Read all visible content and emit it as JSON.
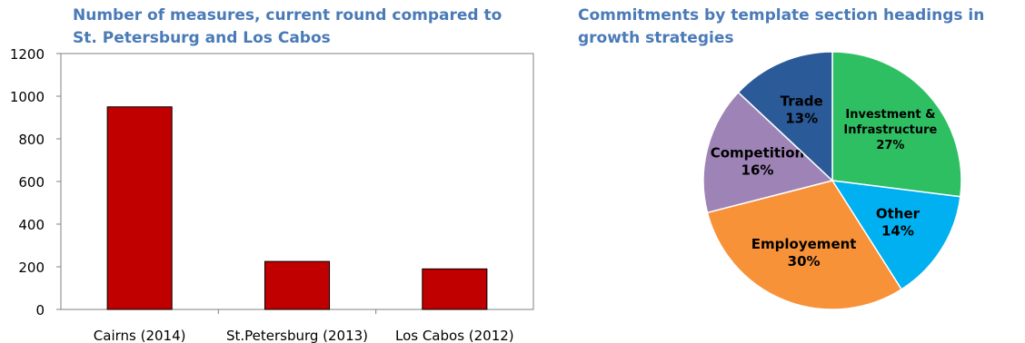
{
  "charts": {
    "bar_title": "Number of measures, current round compared to\nSt. Petersburg and Los Cabos",
    "pie_title": "Commitments by template section headings in\ngrowth strategies"
  },
  "chart_data": [
    {
      "type": "bar",
      "title": "Number of measures, current round compared to St. Petersburg and Los Cabos",
      "categories": [
        "Cairns (2014)",
        "St.Petersburg (2013)",
        "Los Cabos (2012)"
      ],
      "values": [
        950,
        225,
        190
      ],
      "ylim": [
        0,
        1200
      ],
      "yticks": [
        0,
        200,
        400,
        600,
        800,
        1000,
        1200
      ],
      "bar_color": "#c00000",
      "grid": false,
      "xlabel": "",
      "ylabel": ""
    },
    {
      "type": "pie",
      "title": "Commitments by template section headings in growth strategies",
      "slices": [
        {
          "name": "Investment &\nInfrastructure",
          "value": 27,
          "label": "27%",
          "color": "#2ebf63"
        },
        {
          "name": "Other",
          "value": 14,
          "label": "14%",
          "color": "#00b0f0"
        },
        {
          "name": "Employement",
          "value": 30,
          "label": "30%",
          "color": "#f79239"
        },
        {
          "name": "Competition",
          "value": 16,
          "label": "16%",
          "color": "#9e84b6"
        },
        {
          "name": "Trade",
          "value": 13,
          "label": "13%",
          "color": "#2b5a99"
        }
      ]
    }
  ]
}
